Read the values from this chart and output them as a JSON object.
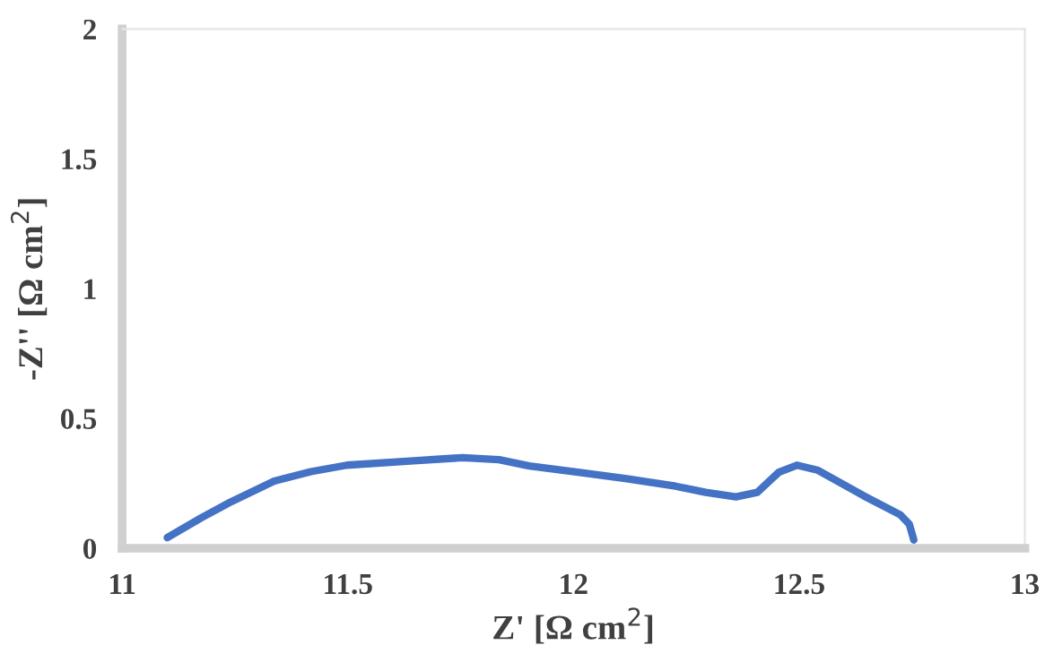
{
  "chart_data": {
    "type": "line",
    "xlabel": "Z' [Ω cm$^{2}$]",
    "ylabel": "-Z'' [Ω cm$^{2}$]",
    "xlim": [
      11,
      13
    ],
    "xticks": [
      11,
      11.5,
      12,
      12.5,
      13
    ],
    "ylim": [
      0,
      2
    ],
    "yticks": [
      0,
      0.5,
      1,
      1.5,
      2
    ],
    "grid": false,
    "marker": "none",
    "line_style": "solid",
    "series": [
      {
        "color": "#4472c4",
        "x": [
          11.1,
          11.175,
          11.24,
          11.337,
          11.418,
          11.498,
          11.646,
          11.754,
          11.835,
          11.902,
          12.01,
          12.118,
          12.226,
          12.293,
          12.36,
          12.407,
          12.455,
          12.495,
          12.542,
          12.643,
          12.724,
          12.744,
          12.754
        ],
        "values": [
          0.041,
          0.117,
          0.178,
          0.259,
          0.295,
          0.32,
          0.337,
          0.349,
          0.341,
          0.317,
          0.293,
          0.268,
          0.239,
          0.215,
          0.198,
          0.215,
          0.293,
          0.32,
          0.3,
          0.202,
          0.129,
          0.093,
          0.032
        ]
      }
    ]
  }
}
